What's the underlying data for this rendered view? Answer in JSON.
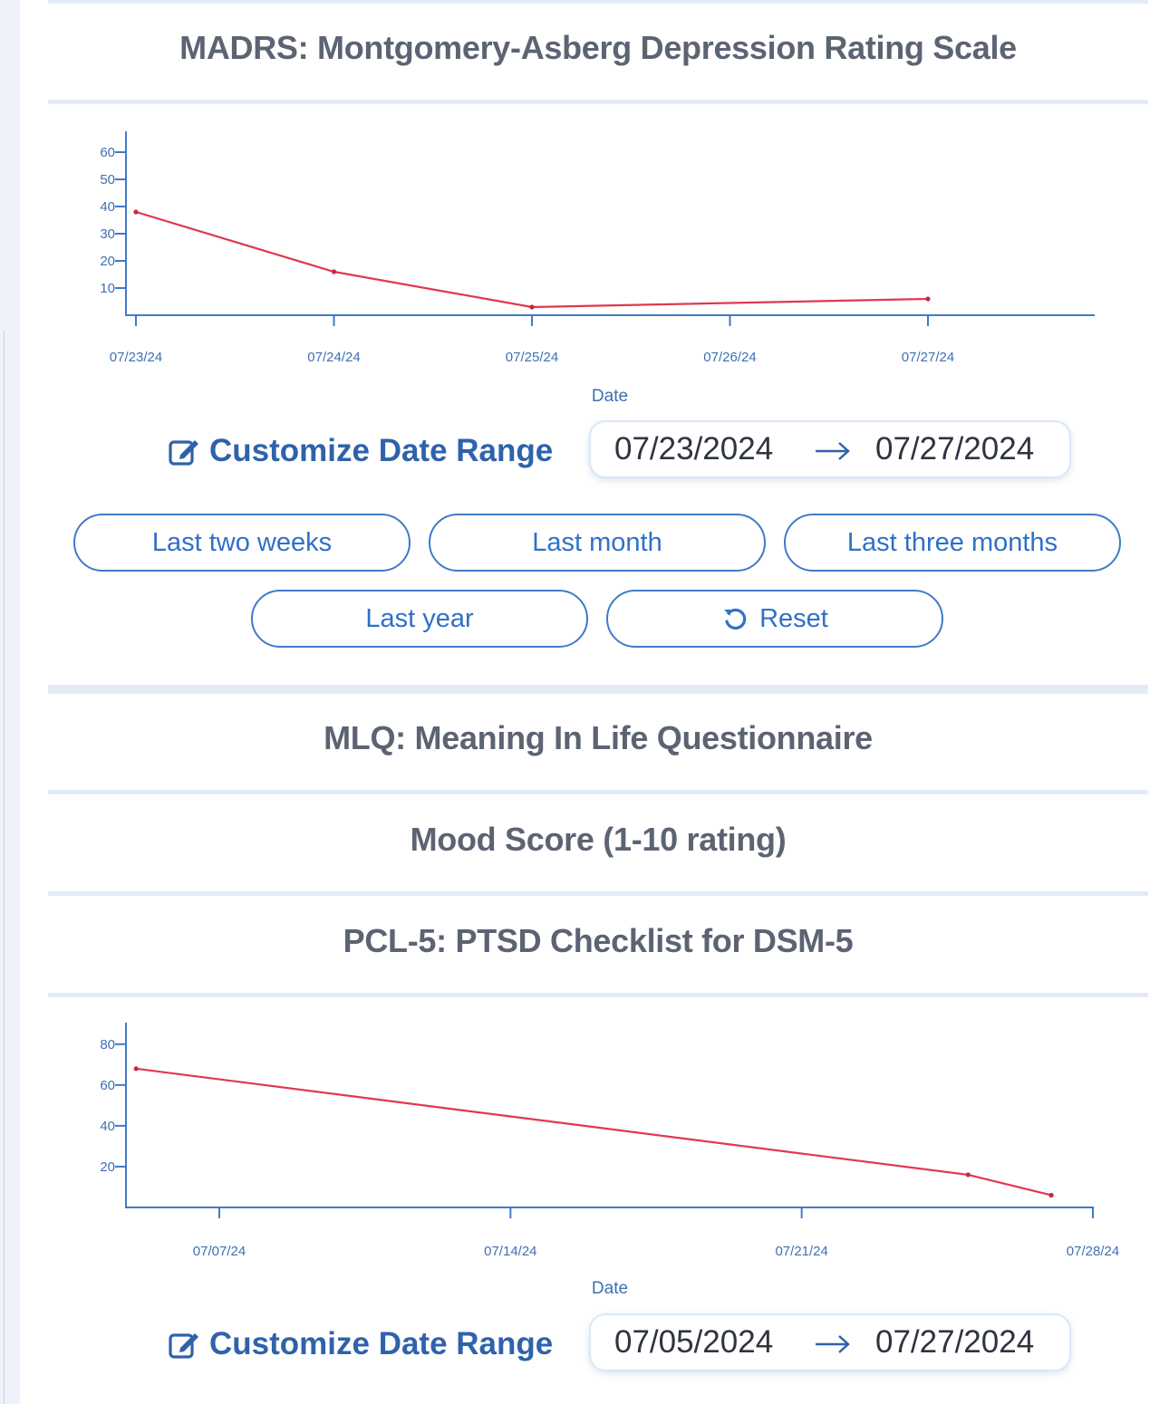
{
  "colors": {
    "accent": "#3f7ac9",
    "title_text": "#5c6373",
    "series_line": "#e0384e",
    "divider": "#e4ebf8"
  },
  "sections": [
    {
      "title": "MADRS: Montgomery-Asberg Depression Rating Scale",
      "chart_data": {
        "type": "line",
        "xlabel": "Date",
        "ylabel": "",
        "x_ticks": [
          "07/23/24",
          "07/24/24",
          "07/25/24",
          "07/26/24",
          "07/27/24"
        ],
        "y_ticks": [
          10,
          20,
          30,
          40,
          50,
          60
        ],
        "ylim": [
          0,
          65
        ],
        "series": [
          {
            "x": [
              "07/23/24",
              "07/24/24",
              "07/25/24",
              "07/27/24"
            ],
            "y": [
              38,
              16,
              3,
              6
            ]
          }
        ],
        "grid": false
      },
      "customize_label": "Customize Date Range",
      "range_start": "07/23/2024",
      "range_end": "07/27/2024"
    },
    {
      "title": "MLQ: Meaning In Life Questionnaire"
    },
    {
      "title": "Mood Score (1-10 rating)"
    },
    {
      "title": "PCL-5: PTSD Checklist for DSM-5",
      "chart_data": {
        "type": "line",
        "xlabel": "Date",
        "ylabel": "",
        "x_ticks": [
          "07/07/24",
          "07/14/24",
          "07/21/24",
          "07/28/24"
        ],
        "y_ticks": [
          20,
          40,
          60,
          80
        ],
        "ylim": [
          0,
          85
        ],
        "series": [
          {
            "x": [
              "07/05/24",
              "07/25/24",
              "07/27/24"
            ],
            "y": [
              68,
              16,
              6
            ]
          }
        ],
        "grid": false
      },
      "customize_label": "Customize Date Range",
      "range_start": "07/05/2024",
      "range_end": "07/27/2024"
    }
  ],
  "range_buttons": {
    "last_two_weeks": "Last two weeks",
    "last_month": "Last month",
    "last_three_months": "Last three months",
    "last_year": "Last year",
    "reset": "Reset"
  },
  "icons": {
    "customize": "edit-icon",
    "reset": "reset-icon",
    "range_arrow": "arrow-right-icon"
  }
}
